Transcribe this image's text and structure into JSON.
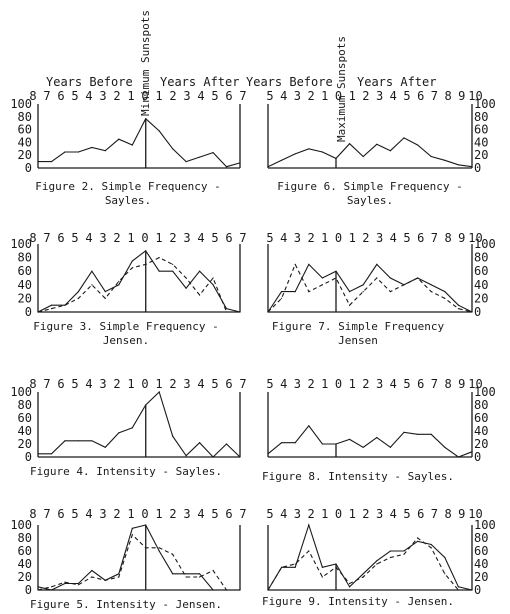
{
  "labels": {
    "minimum": "Minimum Sunspots",
    "maximum": "Maximum Sunspots",
    "years_before": "Years Before",
    "years_after": "Years After"
  },
  "chart_data": [
    {
      "id": "fig2",
      "type": "line",
      "ylim": [
        0,
        100
      ],
      "x_ticks": [
        "8",
        "7",
        "6",
        "5",
        "4",
        "3",
        "2",
        "1",
        "0",
        "1",
        "2",
        "3",
        "4",
        "5",
        "6",
        "7"
      ],
      "caption": [
        "Figure 2. Simple Frequency -",
        "Sayles."
      ],
      "series": [
        {
          "style": "solid",
          "values": [
            10,
            10,
            25,
            25,
            32,
            27,
            45,
            36,
            77,
            58,
            30,
            10,
            17,
            24,
            2,
            8
          ]
        }
      ]
    },
    {
      "id": "fig6",
      "type": "line",
      "ylim": [
        0,
        100
      ],
      "x_ticks": [
        "5",
        "4",
        "3",
        "2",
        "1",
        "0",
        "1",
        "2",
        "3",
        "4",
        "5",
        "6",
        "7",
        "8",
        "9",
        "10"
      ],
      "caption": [
        "Figure 6. Simple Frequency -",
        "Sayles."
      ],
      "series": [
        {
          "style": "solid",
          "values": [
            2,
            12,
            22,
            30,
            25,
            15,
            38,
            18,
            37,
            27,
            47,
            36,
            18,
            12,
            5,
            2
          ]
        }
      ]
    },
    {
      "id": "fig3",
      "type": "line",
      "ylim": [
        0,
        100
      ],
      "x_ticks": [
        "8",
        "7",
        "6",
        "5",
        "4",
        "3",
        "2",
        "1",
        "0",
        "1",
        "2",
        "3",
        "4",
        "5",
        "6",
        "7"
      ],
      "caption": [
        "Figure 3. Simple Frequency -",
        "Jensen."
      ],
      "series": [
        {
          "style": "solid",
          "values": [
            0,
            10,
            10,
            30,
            60,
            30,
            40,
            75,
            90,
            60,
            60,
            35,
            60,
            40,
            5,
            0
          ]
        },
        {
          "style": "dashed",
          "values": [
            0,
            5,
            10,
            20,
            40,
            20,
            45,
            65,
            70,
            80,
            70,
            50,
            25,
            50,
            0,
            0
          ]
        }
      ]
    },
    {
      "id": "fig7",
      "type": "line",
      "ylim": [
        0,
        100
      ],
      "x_ticks": [
        "5",
        "4",
        "3",
        "2",
        "1",
        "0",
        "1",
        "2",
        "3",
        "4",
        "5",
        "6",
        "7",
        "8",
        "9",
        "10"
      ],
      "caption": [
        "Figure 7. Simple Frequency",
        "Jensen"
      ],
      "series": [
        {
          "style": "solid",
          "values": [
            0,
            30,
            30,
            70,
            50,
            60,
            30,
            40,
            70,
            50,
            40,
            50,
            40,
            30,
            10,
            0
          ]
        },
        {
          "style": "dashed",
          "values": [
            0,
            20,
            70,
            30,
            40,
            50,
            10,
            30,
            50,
            30,
            40,
            50,
            30,
            20,
            5,
            0
          ]
        }
      ]
    },
    {
      "id": "fig4",
      "type": "line",
      "ylim": [
        0,
        100
      ],
      "x_ticks": [
        "8",
        "7",
        "6",
        "5",
        "4",
        "3",
        "2",
        "1",
        "0",
        "1",
        "2",
        "3",
        "4",
        "5",
        "6",
        "7"
      ],
      "caption": [
        "Figure 4. Intensity - Sayles."
      ],
      "series": [
        {
          "style": "solid",
          "values": [
            5,
            5,
            25,
            25,
            25,
            15,
            37,
            45,
            80,
            100,
            32,
            2,
            22,
            0,
            20,
            0
          ]
        }
      ]
    },
    {
      "id": "fig8",
      "type": "line",
      "ylim": [
        0,
        100
      ],
      "x_ticks": [
        "5",
        "4",
        "3",
        "2",
        "1",
        "0",
        "1",
        "2",
        "3",
        "4",
        "5",
        "6",
        "7",
        "8",
        "9",
        "10"
      ],
      "caption": [
        "Figure 8. Intensity - Sayles."
      ],
      "series": [
        {
          "style": "solid",
          "values": [
            5,
            22,
            22,
            48,
            20,
            20,
            27,
            15,
            30,
            15,
            38,
            35,
            35,
            15,
            0,
            8
          ]
        }
      ]
    },
    {
      "id": "fig5",
      "type": "line",
      "ylim": [
        0,
        100
      ],
      "x_ticks": [
        "8",
        "7",
        "6",
        "5",
        "4",
        "3",
        "2",
        "1",
        "0",
        "1",
        "2",
        "3",
        "4",
        "5",
        "6",
        "7"
      ],
      "caption": [
        "Figure 5. Intensity - Jensen."
      ],
      "series": [
        {
          "style": "solid",
          "values": [
            5,
            0,
            10,
            10,
            30,
            15,
            25,
            95,
            100,
            60,
            25,
            25,
            25,
            0,
            0,
            0
          ]
        },
        {
          "style": "dashed",
          "values": [
            0,
            5,
            12,
            8,
            20,
            15,
            20,
            85,
            65,
            65,
            55,
            20,
            20,
            30,
            0,
            0
          ]
        }
      ]
    },
    {
      "id": "fig9",
      "type": "line",
      "ylim": [
        0,
        100
      ],
      "x_ticks": [
        "5",
        "4",
        "3",
        "2",
        "1",
        "0",
        "1",
        "2",
        "3",
        "4",
        "5",
        "6",
        "7",
        "8",
        "9",
        "10"
      ],
      "caption": [
        "Figure 9. Intensity - Jensen."
      ],
      "series": [
        {
          "style": "solid",
          "values": [
            0,
            35,
            35,
            100,
            35,
            40,
            5,
            25,
            45,
            60,
            60,
            75,
            70,
            50,
            5,
            0
          ]
        },
        {
          "style": "dashed",
          "values": [
            0,
            35,
            40,
            60,
            20,
            35,
            10,
            20,
            40,
            50,
            55,
            80,
            65,
            25,
            0,
            0
          ]
        }
      ]
    }
  ]
}
